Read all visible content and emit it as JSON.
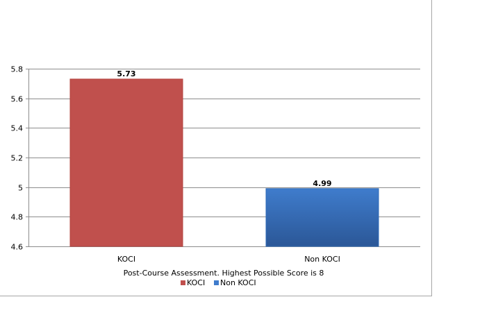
{
  "chart_data": {
    "type": "bar",
    "categories": [
      "KOCI",
      "Non KOCI"
    ],
    "values": [
      5.73,
      4.99
    ],
    "data_labels": [
      "5.73",
      "4.99"
    ],
    "colors": [
      "#c0504d",
      "#3f7ccc"
    ],
    "xlabel": "Post-Course Assessment. Highest Possible Score is 8",
    "ylim": [
      4.6,
      5.8
    ],
    "yticks": [
      "4.6",
      "4.8",
      "5",
      "5.2",
      "5.4",
      "5.6",
      "5.8"
    ],
    "ytick_values": [
      4.6,
      4.8,
      5.0,
      5.2,
      5.4,
      5.6,
      5.8
    ],
    "grid": true,
    "legend": {
      "placement": "bottom",
      "entries": [
        "KOCI",
        "Non KOCI"
      ]
    }
  }
}
